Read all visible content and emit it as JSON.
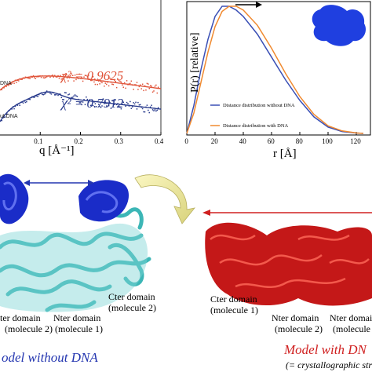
{
  "saxs_fit": {
    "chi_top": "χ² = 0.9625",
    "chi_bottom": "χ² = 0.7912",
    "legend_top": "DNA",
    "legend_bottom": "ut DNA",
    "xlabel": "q [Å⁻¹]",
    "ticks": [
      "0.1",
      "0.2",
      "0.3",
      "0.4"
    ],
    "colors": {
      "with_dna": "#e0543a",
      "without_dna": "#283a8c"
    }
  },
  "pr_plot": {
    "ylabel": "P(r) [relative]",
    "xlabel": "r [Å]",
    "ticks": [
      "0",
      "20",
      "40",
      "60",
      "80",
      "100",
      "120"
    ],
    "legend_without": "Distance distribution without DNA",
    "legend_with": "Distance distribution with DNA",
    "colors": {
      "without": "#3a4fb5",
      "with": "#f08a30",
      "envelope": "#1f3fe0"
    }
  },
  "chart_data": [
    {
      "type": "scatter",
      "xlabel": "q [Å⁻¹]",
      "ylabel": "",
      "xlim": [
        0,
        0.4
      ],
      "x_ticks": [
        "0.1",
        "0.2",
        "0.3",
        "0.4"
      ],
      "annotations": [
        "χ² = 0.9625",
        "χ² = 0.7912"
      ]
    },
    {
      "type": "line",
      "ylabel": "P(r) [relative]",
      "xlabel": "r [Å]",
      "xlim": [
        0,
        130
      ],
      "x_ticks": [
        "0",
        "20",
        "40",
        "60",
        "80",
        "100",
        "120"
      ],
      "series": [
        {
          "name": "Distance distribution without DNA",
          "x": [
            0,
            5,
            10,
            15,
            20,
            25,
            30,
            35,
            40,
            50,
            60,
            70,
            80,
            90,
            100,
            110,
            120,
            125
          ],
          "y": [
            0,
            0.22,
            0.5,
            0.74,
            0.92,
            1.0,
            1.0,
            0.97,
            0.92,
            0.78,
            0.6,
            0.42,
            0.26,
            0.13,
            0.05,
            0.015,
            0.003,
            0
          ]
        },
        {
          "name": "Distance distribution with DNA",
          "x": [
            0,
            5,
            10,
            15,
            20,
            25,
            30,
            35,
            40,
            50,
            60,
            70,
            80,
            90,
            100,
            110,
            120,
            125
          ],
          "y": [
            0,
            0.16,
            0.4,
            0.64,
            0.84,
            0.96,
            1.0,
            1.0,
            0.97,
            0.85,
            0.67,
            0.47,
            0.29,
            0.15,
            0.06,
            0.02,
            0.004,
            0
          ]
        }
      ]
    }
  ],
  "structures": {
    "left_arrow_color": "#2436b0",
    "ter_domain_left": "ter domain",
    "ter_domain_left_sub": "(molecule 2)",
    "nter_domain_left": "Nter domain",
    "nter_domain_left_sub": "(molecule 1)",
    "cter_domain_left": "Cter domain",
    "cter_domain_left_sub": "(molecule 2)",
    "cter_domain_right": "Cter domain",
    "cter_domain_right_sub": "(molecule 1)",
    "nter_domain_right1": "Nter domain",
    "nter_domain_right1_sub": "(molecule 2)",
    "nter_domain_right2": "Nter domai",
    "nter_domain_right2_sub": "(molecule 1",
    "caption_left": "odel without DNA",
    "caption_right": "Model with DN",
    "caption_right_sub": "(= crystallographic str"
  }
}
